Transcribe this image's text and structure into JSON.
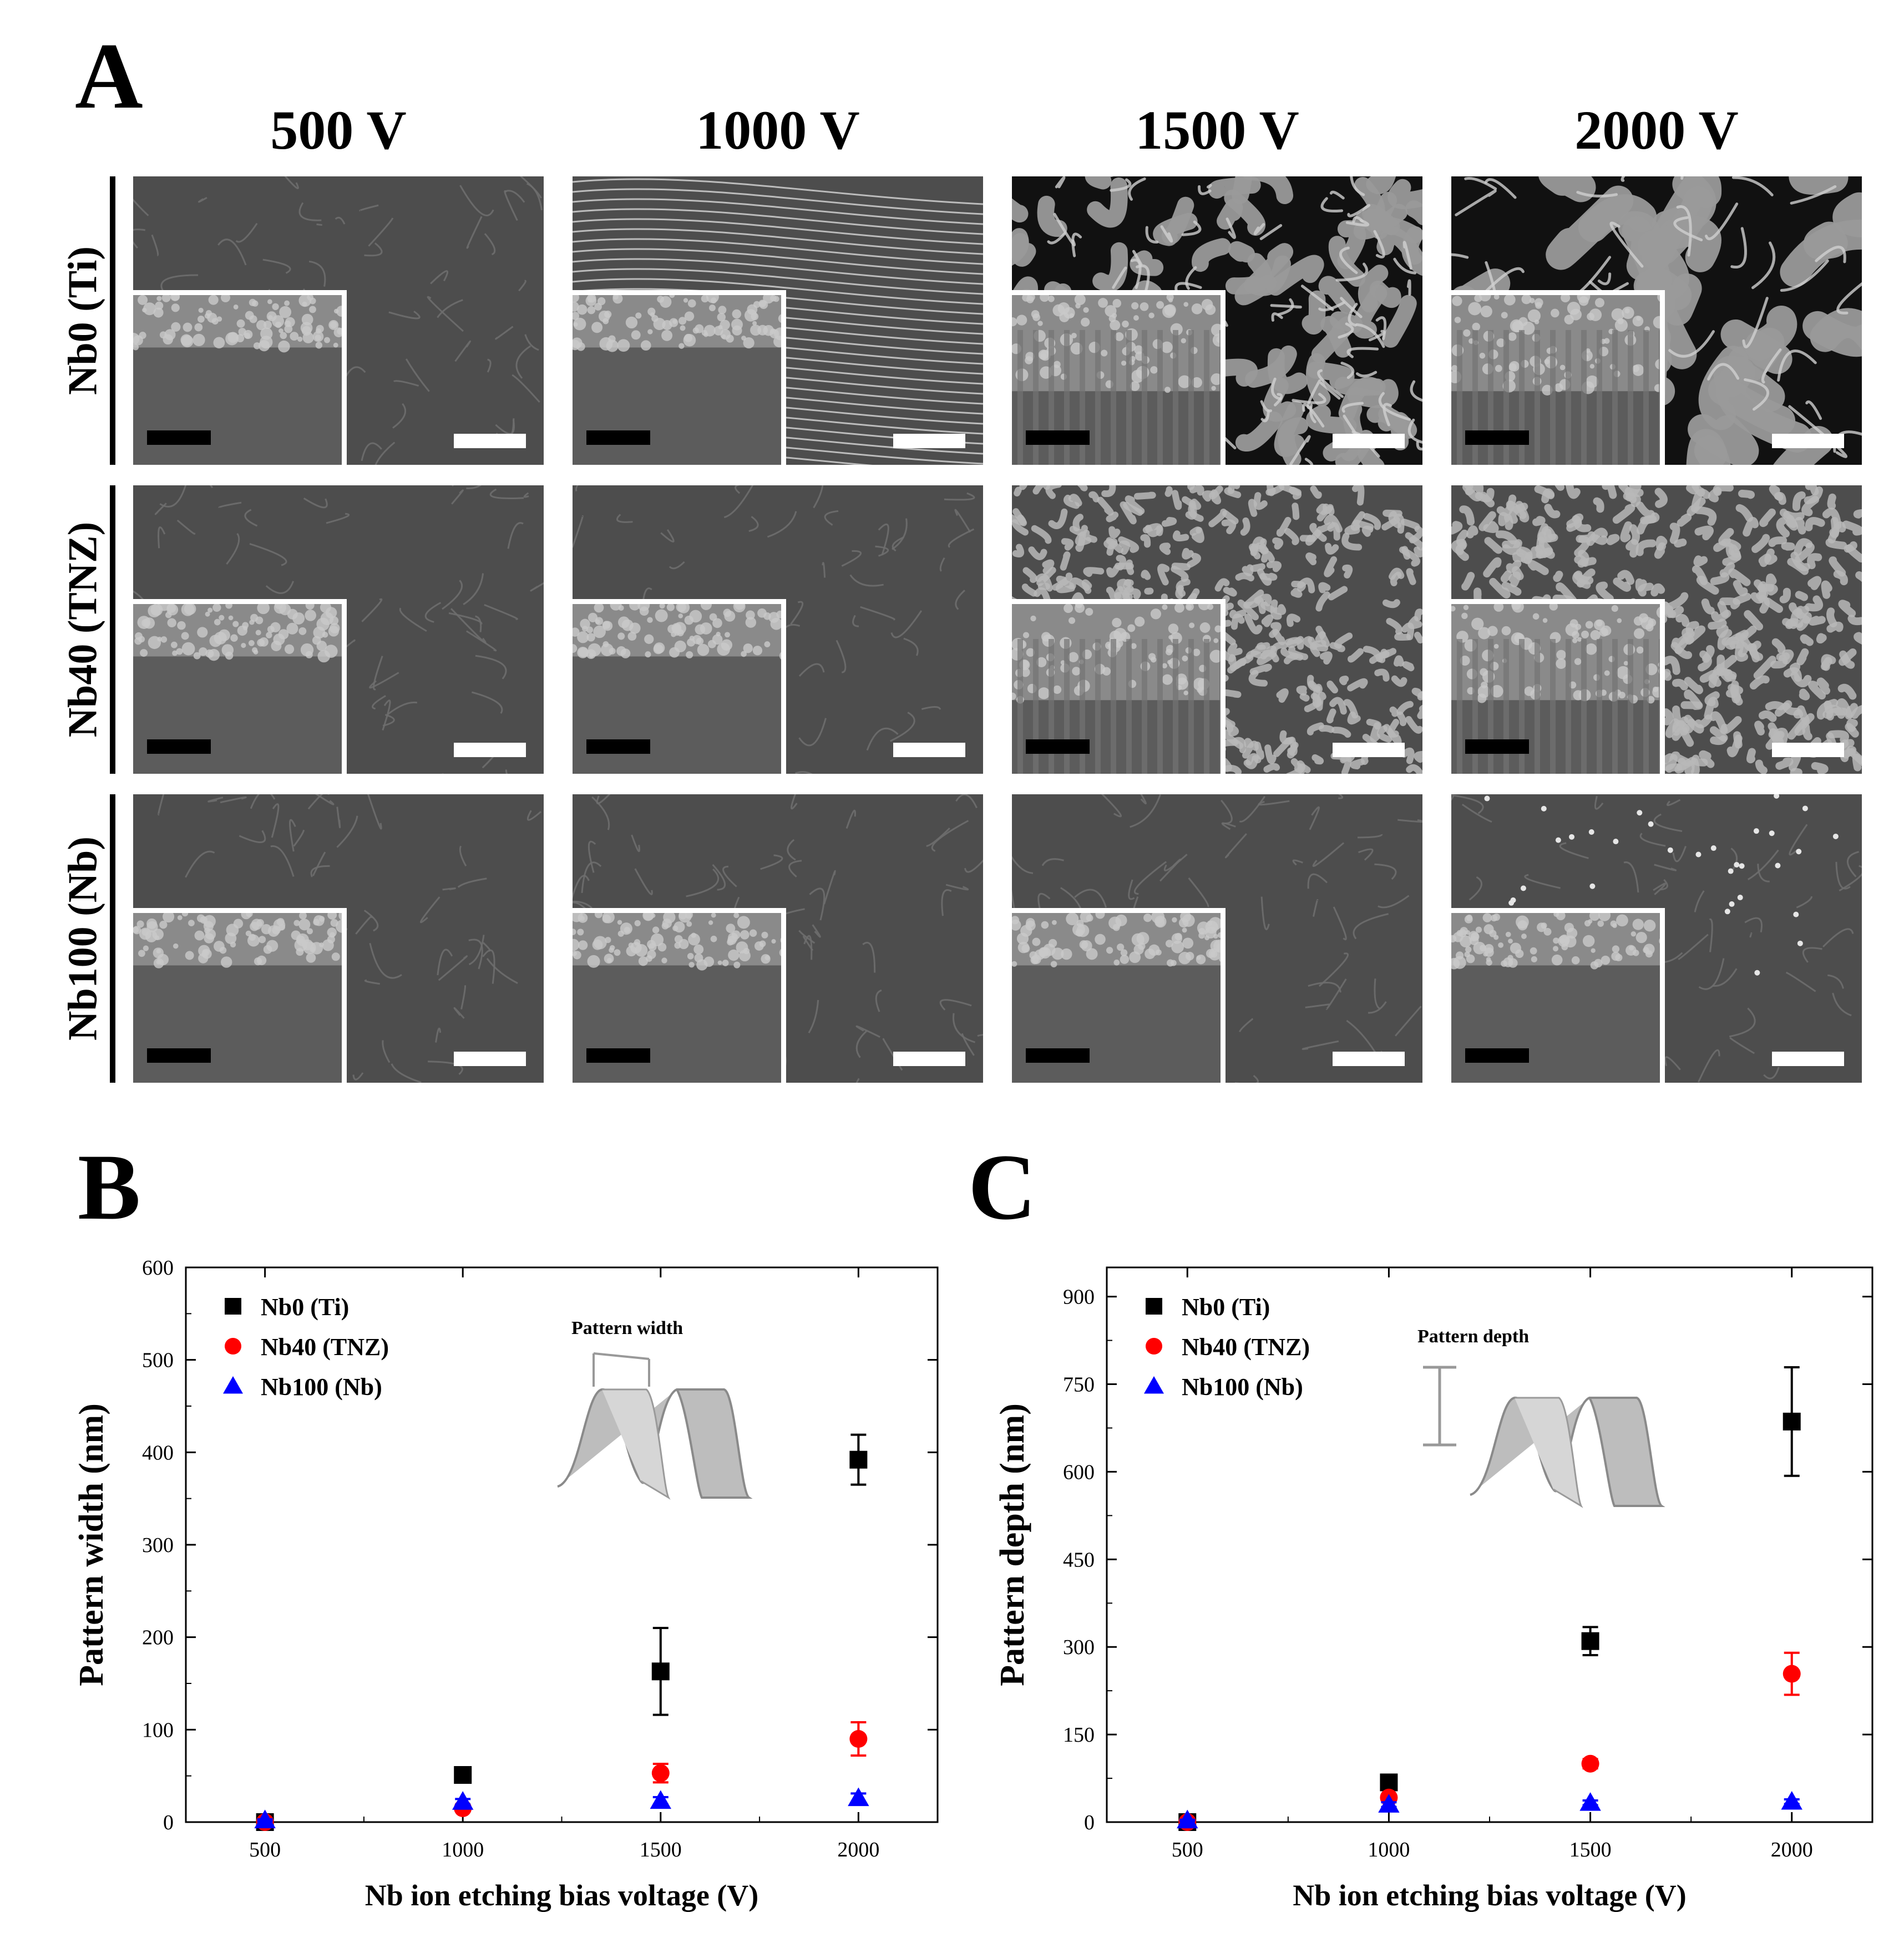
{
  "panel_labels": {
    "a": "A",
    "b": "B",
    "c": "C"
  },
  "sem_grid": {
    "columns": [
      "500 V",
      "1000 V",
      "1500 V",
      "2000 V"
    ],
    "rows": [
      "Nb0 (Ti)",
      "Nb40 (TNZ)",
      "Nb100 (Nb)"
    ]
  },
  "chart_data": [
    {
      "type": "scatter",
      "title": "",
      "xlabel": "Nb ion etching bias voltage (V)",
      "ylabel": "Pattern width (nm)",
      "xlim": [
        300,
        2200
      ],
      "ylim": [
        0,
        600
      ],
      "xticks": [
        500,
        1000,
        1500,
        2000
      ],
      "yticks": [
        0,
        100,
        200,
        300,
        400,
        500,
        600
      ],
      "legend_position": "top-left",
      "inset_label": "Pattern width",
      "series": [
        {
          "name": "Nb0 (Ti)",
          "color": "#000000",
          "marker": "square",
          "x": [
            500,
            1000,
            1500,
            2000
          ],
          "y": [
            0,
            51,
            163,
            392
          ],
          "err": [
            0,
            4,
            47,
            27
          ]
        },
        {
          "name": "Nb40 (TNZ)",
          "color": "#ff0000",
          "marker": "circle",
          "x": [
            500,
            1000,
            1500,
            2000
          ],
          "y": [
            0,
            15,
            53,
            90
          ],
          "err": [
            0,
            3,
            10,
            18
          ]
        },
        {
          "name": "Nb100 (Nb)",
          "color": "#0000ff",
          "marker": "triangle",
          "x": [
            500,
            1000,
            1500,
            2000
          ],
          "y": [
            2,
            22,
            23,
            26
          ],
          "err": [
            1,
            3,
            4,
            5
          ]
        }
      ]
    },
    {
      "type": "scatter",
      "title": "",
      "xlabel": "Nb ion etching bias voltage (V)",
      "ylabel": "Pattern depth (nm)",
      "xlim": [
        300,
        2200
      ],
      "ylim": [
        0,
        950
      ],
      "xticks": [
        500,
        1000,
        1500,
        2000
      ],
      "yticks": [
        0,
        150,
        300,
        450,
        600,
        750,
        900
      ],
      "legend_position": "top-left",
      "inset_label": "Pattern depth",
      "series": [
        {
          "name": "Nb0 (Ti)",
          "color": "#000000",
          "marker": "square",
          "x": [
            500,
            1000,
            1500,
            2000
          ],
          "y": [
            0,
            68,
            310,
            686
          ],
          "err": [
            0,
            8,
            24,
            93
          ]
        },
        {
          "name": "Nb40 (TNZ)",
          "color": "#ff0000",
          "marker": "circle",
          "x": [
            500,
            1000,
            1500,
            2000
          ],
          "y": [
            0,
            42,
            100,
            254
          ],
          "err": [
            0,
            5,
            8,
            36
          ]
        },
        {
          "name": "Nb100 (Nb)",
          "color": "#0000ff",
          "marker": "triangle",
          "x": [
            500,
            1000,
            1500,
            2000
          ],
          "y": [
            3,
            30,
            33,
            35
          ],
          "err": [
            1,
            4,
            4,
            4
          ]
        }
      ]
    }
  ]
}
